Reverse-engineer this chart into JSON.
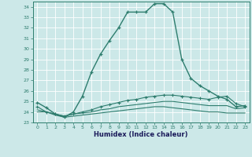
{
  "xlabel": "Humidex (Indice chaleur)",
  "x": [
    0,
    1,
    2,
    3,
    4,
    5,
    6,
    7,
    8,
    9,
    10,
    11,
    12,
    13,
    14,
    15,
    16,
    17,
    18,
    19,
    20,
    21,
    22,
    23
  ],
  "line1": [
    24.9,
    24.4,
    23.8,
    23.5,
    24.0,
    25.5,
    27.8,
    29.5,
    30.8,
    32.0,
    33.5,
    33.5,
    33.5,
    34.3,
    34.3,
    33.5,
    29.0,
    27.2,
    26.5,
    26.0,
    25.5,
    25.2,
    24.5,
    24.6
  ],
  "line2": [
    24.5,
    24.0,
    23.8,
    23.6,
    23.8,
    24.0,
    24.2,
    24.5,
    24.7,
    24.9,
    25.1,
    25.2,
    25.4,
    25.5,
    25.6,
    25.6,
    25.5,
    25.4,
    25.3,
    25.2,
    25.4,
    25.5,
    24.8,
    24.5
  ],
  "line3": [
    24.2,
    24.0,
    23.8,
    23.6,
    23.8,
    23.9,
    24.0,
    24.2,
    24.3,
    24.5,
    24.6,
    24.7,
    24.8,
    24.9,
    25.0,
    25.0,
    24.9,
    24.8,
    24.7,
    24.6,
    24.6,
    24.6,
    24.3,
    24.4
  ],
  "line4": [
    24.0,
    24.0,
    23.7,
    23.5,
    23.6,
    23.7,
    23.8,
    23.9,
    24.0,
    24.1,
    24.2,
    24.3,
    24.4,
    24.5,
    24.5,
    24.4,
    24.3,
    24.2,
    24.1,
    24.0,
    24.0,
    23.9,
    23.9,
    23.9
  ],
  "color": "#2e7d6e",
  "background": "#cce8e8",
  "grid_color": "#b0d0d0",
  "ylim": [
    23,
    34.5
  ],
  "xlim": [
    -0.5,
    23.5
  ],
  "yticks": [
    23,
    24,
    25,
    26,
    27,
    28,
    29,
    30,
    31,
    32,
    33,
    34
  ],
  "xticks": [
    0,
    1,
    2,
    3,
    4,
    5,
    6,
    7,
    8,
    9,
    10,
    11,
    12,
    13,
    14,
    15,
    16,
    17,
    18,
    19,
    20,
    21,
    22,
    23
  ]
}
